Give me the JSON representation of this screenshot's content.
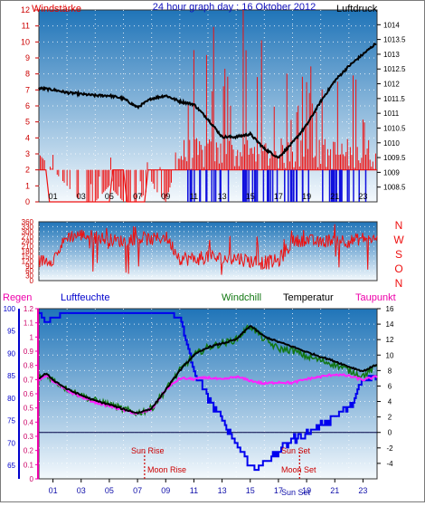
{
  "top": {
    "left_label": "Windstärke",
    "title": "24 hour graph day : 16 Oktober 2012",
    "right_label": "Luftdruck"
  },
  "mid_dirs": [
    "N",
    "W",
    "S",
    "O",
    "N"
  ],
  "bot": {
    "label_regen": "Regen",
    "label_feuchte": "Luftfeuchte",
    "label_windchill": "Windchill",
    "label_temp": "Temperatur",
    "label_taupunkt": "Taupunkt",
    "sun_rise": "Sun Rise",
    "moon_rise": "Moon Rise",
    "sun_set": "Sun Set",
    "moon_set": "Moon Set",
    "sun_set_axis": "Sun Set"
  },
  "colors": {
    "wind": "#ee1111",
    "gust_low": "#1010dd",
    "pressure": "#000000",
    "direction": "#ee1111",
    "humidity": "#0000ee",
    "rain": "#ee00aa",
    "windchill": "#117711",
    "temperature": "#000000",
    "dewpoint": "#ff22ff",
    "panel_top": "#1f74b8",
    "panel_bottom": "#f4f9fd"
  },
  "chart_data": [
    {
      "type": "line",
      "name": "wind-pressure",
      "x_ticks": [
        "01",
        "03",
        "05",
        "07",
        "09",
        "11",
        "13",
        "15",
        "17",
        "19",
        "21",
        "23"
      ],
      "y_left": {
        "label": "Windstärke",
        "range": [
          0,
          12
        ],
        "ticks": [
          0,
          1,
          2,
          3,
          4,
          5,
          6,
          7,
          8,
          9,
          10,
          11,
          12
        ]
      },
      "y_right": {
        "label": "Luftdruck",
        "range": [
          1008.0,
          1014.5
        ],
        "ticks": [
          1008.5,
          1009,
          1009.5,
          1010,
          1010.5,
          1011,
          1011.5,
          1012,
          1012.5,
          1013,
          1013.5,
          1014
        ]
      },
      "pressure_series": {
        "x": [
          0,
          1,
          2,
          3,
          4,
          5,
          6,
          7,
          8,
          9,
          10,
          11,
          12,
          13,
          14,
          15,
          16,
          17,
          18,
          19,
          20,
          21,
          22,
          23,
          24
        ],
        "y": [
          1011.85,
          1011.8,
          1011.7,
          1011.65,
          1011.6,
          1011.6,
          1011.5,
          1011.2,
          1011.5,
          1011.6,
          1011.4,
          1011.3,
          1010.8,
          1010.2,
          1010.2,
          1010.3,
          1009.8,
          1009.5,
          1010.0,
          1010.6,
          1011.4,
          1012.1,
          1012.6,
          1013.0,
          1013.4
        ]
      },
      "wind_series": {
        "x": [
          0,
          1,
          2,
          3,
          4,
          5,
          6,
          7,
          8,
          9,
          10,
          11,
          12,
          13,
          14,
          15,
          16,
          17,
          18,
          19,
          20,
          21,
          22,
          23,
          24
        ],
        "y": [
          3,
          2,
          1,
          0,
          0,
          1,
          0,
          0,
          1,
          0,
          3,
          5,
          6,
          7,
          5,
          10,
          4,
          2,
          5,
          4,
          6,
          5,
          4,
          3,
          3
        ]
      }
    },
    {
      "type": "line",
      "name": "wind-direction",
      "y_range": [
        0,
        360
      ],
      "y_ticks": [
        0,
        30,
        60,
        90,
        120,
        150,
        180,
        210,
        240,
        270,
        300,
        330,
        360
      ],
      "x": [
        0,
        1,
        2,
        3,
        4,
        5,
        6,
        7,
        8,
        9,
        10,
        11,
        12,
        13,
        14,
        15,
        16,
        17,
        18,
        19,
        20,
        21,
        22,
        23,
        24
      ],
      "y": [
        120,
        130,
        270,
        280,
        270,
        250,
        240,
        260,
        250,
        270,
        140,
        130,
        150,
        130,
        140,
        120,
        110,
        120,
        240,
        250,
        230,
        260,
        240,
        260,
        250
      ]
    },
    {
      "type": "line",
      "name": "temp-humidity",
      "y_left_humidity": {
        "range": [
          62,
          100
        ],
        "ticks": [
          65,
          70,
          75,
          80,
          85,
          90,
          95,
          100
        ]
      },
      "y_left_rain": {
        "range": [
          0,
          1.2
        ],
        "ticks": [
          0,
          0.1,
          0.2,
          0.3,
          0.4,
          0.5,
          0.6,
          0.7,
          0.8,
          0.9,
          1,
          1.1,
          1.2
        ]
      },
      "y_right": {
        "range": [
          -6,
          16
        ],
        "ticks": [
          -4,
          -2,
          0,
          2,
          4,
          6,
          8,
          10,
          12,
          14,
          16
        ]
      },
      "x_ticks": [
        "01",
        "03",
        "05",
        "07",
        "09",
        "11",
        "13",
        "15",
        "17",
        "19",
        "21",
        "23"
      ],
      "series": [
        {
          "name": "Luftfeuchte",
          "x": [
            0,
            0.5,
            1,
            2,
            4,
            6,
            8,
            9,
            10,
            11,
            12,
            13,
            14,
            15,
            15.5,
            16,
            17,
            18,
            19,
            20,
            21,
            22,
            23,
            24
          ],
          "y": [
            99,
            97,
            98,
            99,
            99,
            99,
            99,
            99,
            98,
            86,
            80,
            75,
            70,
            65,
            64,
            66,
            68,
            71,
            72,
            74,
            76,
            78,
            84,
            85
          ]
        },
        {
          "name": "Temperatur",
          "x": [
            0,
            0.5,
            1,
            2,
            3,
            4,
            5,
            6,
            7,
            8,
            9,
            10,
            11,
            12,
            13,
            14,
            15,
            16,
            17,
            18,
            19,
            20,
            21,
            22,
            23,
            24
          ],
          "y": [
            7,
            7.6,
            6.8,
            5.6,
            4.8,
            4.1,
            3.6,
            3.0,
            2.5,
            3.1,
            5.5,
            8.0,
            10.0,
            11.0,
            11.5,
            12.0,
            13.8,
            12.4,
            11.7,
            11.1,
            10.4,
            9.8,
            9.2,
            8.5,
            7.9,
            8.8
          ]
        },
        {
          "name": "Windchill",
          "x": [
            0,
            0.5,
            1,
            2,
            3,
            4,
            5,
            6,
            7,
            8,
            9,
            10,
            11,
            12,
            13,
            14,
            15,
            16,
            17,
            18,
            19,
            20,
            21,
            22,
            23,
            24
          ],
          "y": [
            7,
            7.6,
            6.8,
            5.6,
            4.8,
            4.1,
            3.6,
            3.0,
            2.5,
            3.1,
            5.5,
            8.0,
            10.0,
            11.0,
            11.5,
            12.0,
            13.8,
            12.0,
            10.8,
            10.6,
            9.8,
            9.3,
            8.8,
            8.0,
            7.3,
            8.6
          ]
        },
        {
          "name": "Taupunkt",
          "x": [
            0,
            0.5,
            1,
            2,
            3,
            4,
            5,
            6,
            7,
            8,
            9,
            10,
            11,
            12,
            13,
            14,
            15,
            16,
            17,
            18,
            19,
            20,
            21,
            22,
            23,
            24
          ],
          "y": [
            6.8,
            7.4,
            6.6,
            5.4,
            4.6,
            3.9,
            3.4,
            2.9,
            2.4,
            3.0,
            5.5,
            7.0,
            6.9,
            7.1,
            6.8,
            7.2,
            6.7,
            6.3,
            6.5,
            6.4,
            6.9,
            7.2,
            7.5,
            7.3,
            6.8,
            7.2
          ]
        },
        {
          "name": "Regen",
          "x": [
            0,
            24
          ],
          "y": [
            0.3,
            0.3
          ]
        }
      ],
      "markers": [
        {
          "label": "Sun Rise",
          "x": 7.5
        },
        {
          "label": "Moon Rise",
          "x": 7.5
        },
        {
          "label": "Sun Set",
          "x": 18.5
        },
        {
          "label": "Moon Set",
          "x": 18.5
        }
      ]
    }
  ]
}
